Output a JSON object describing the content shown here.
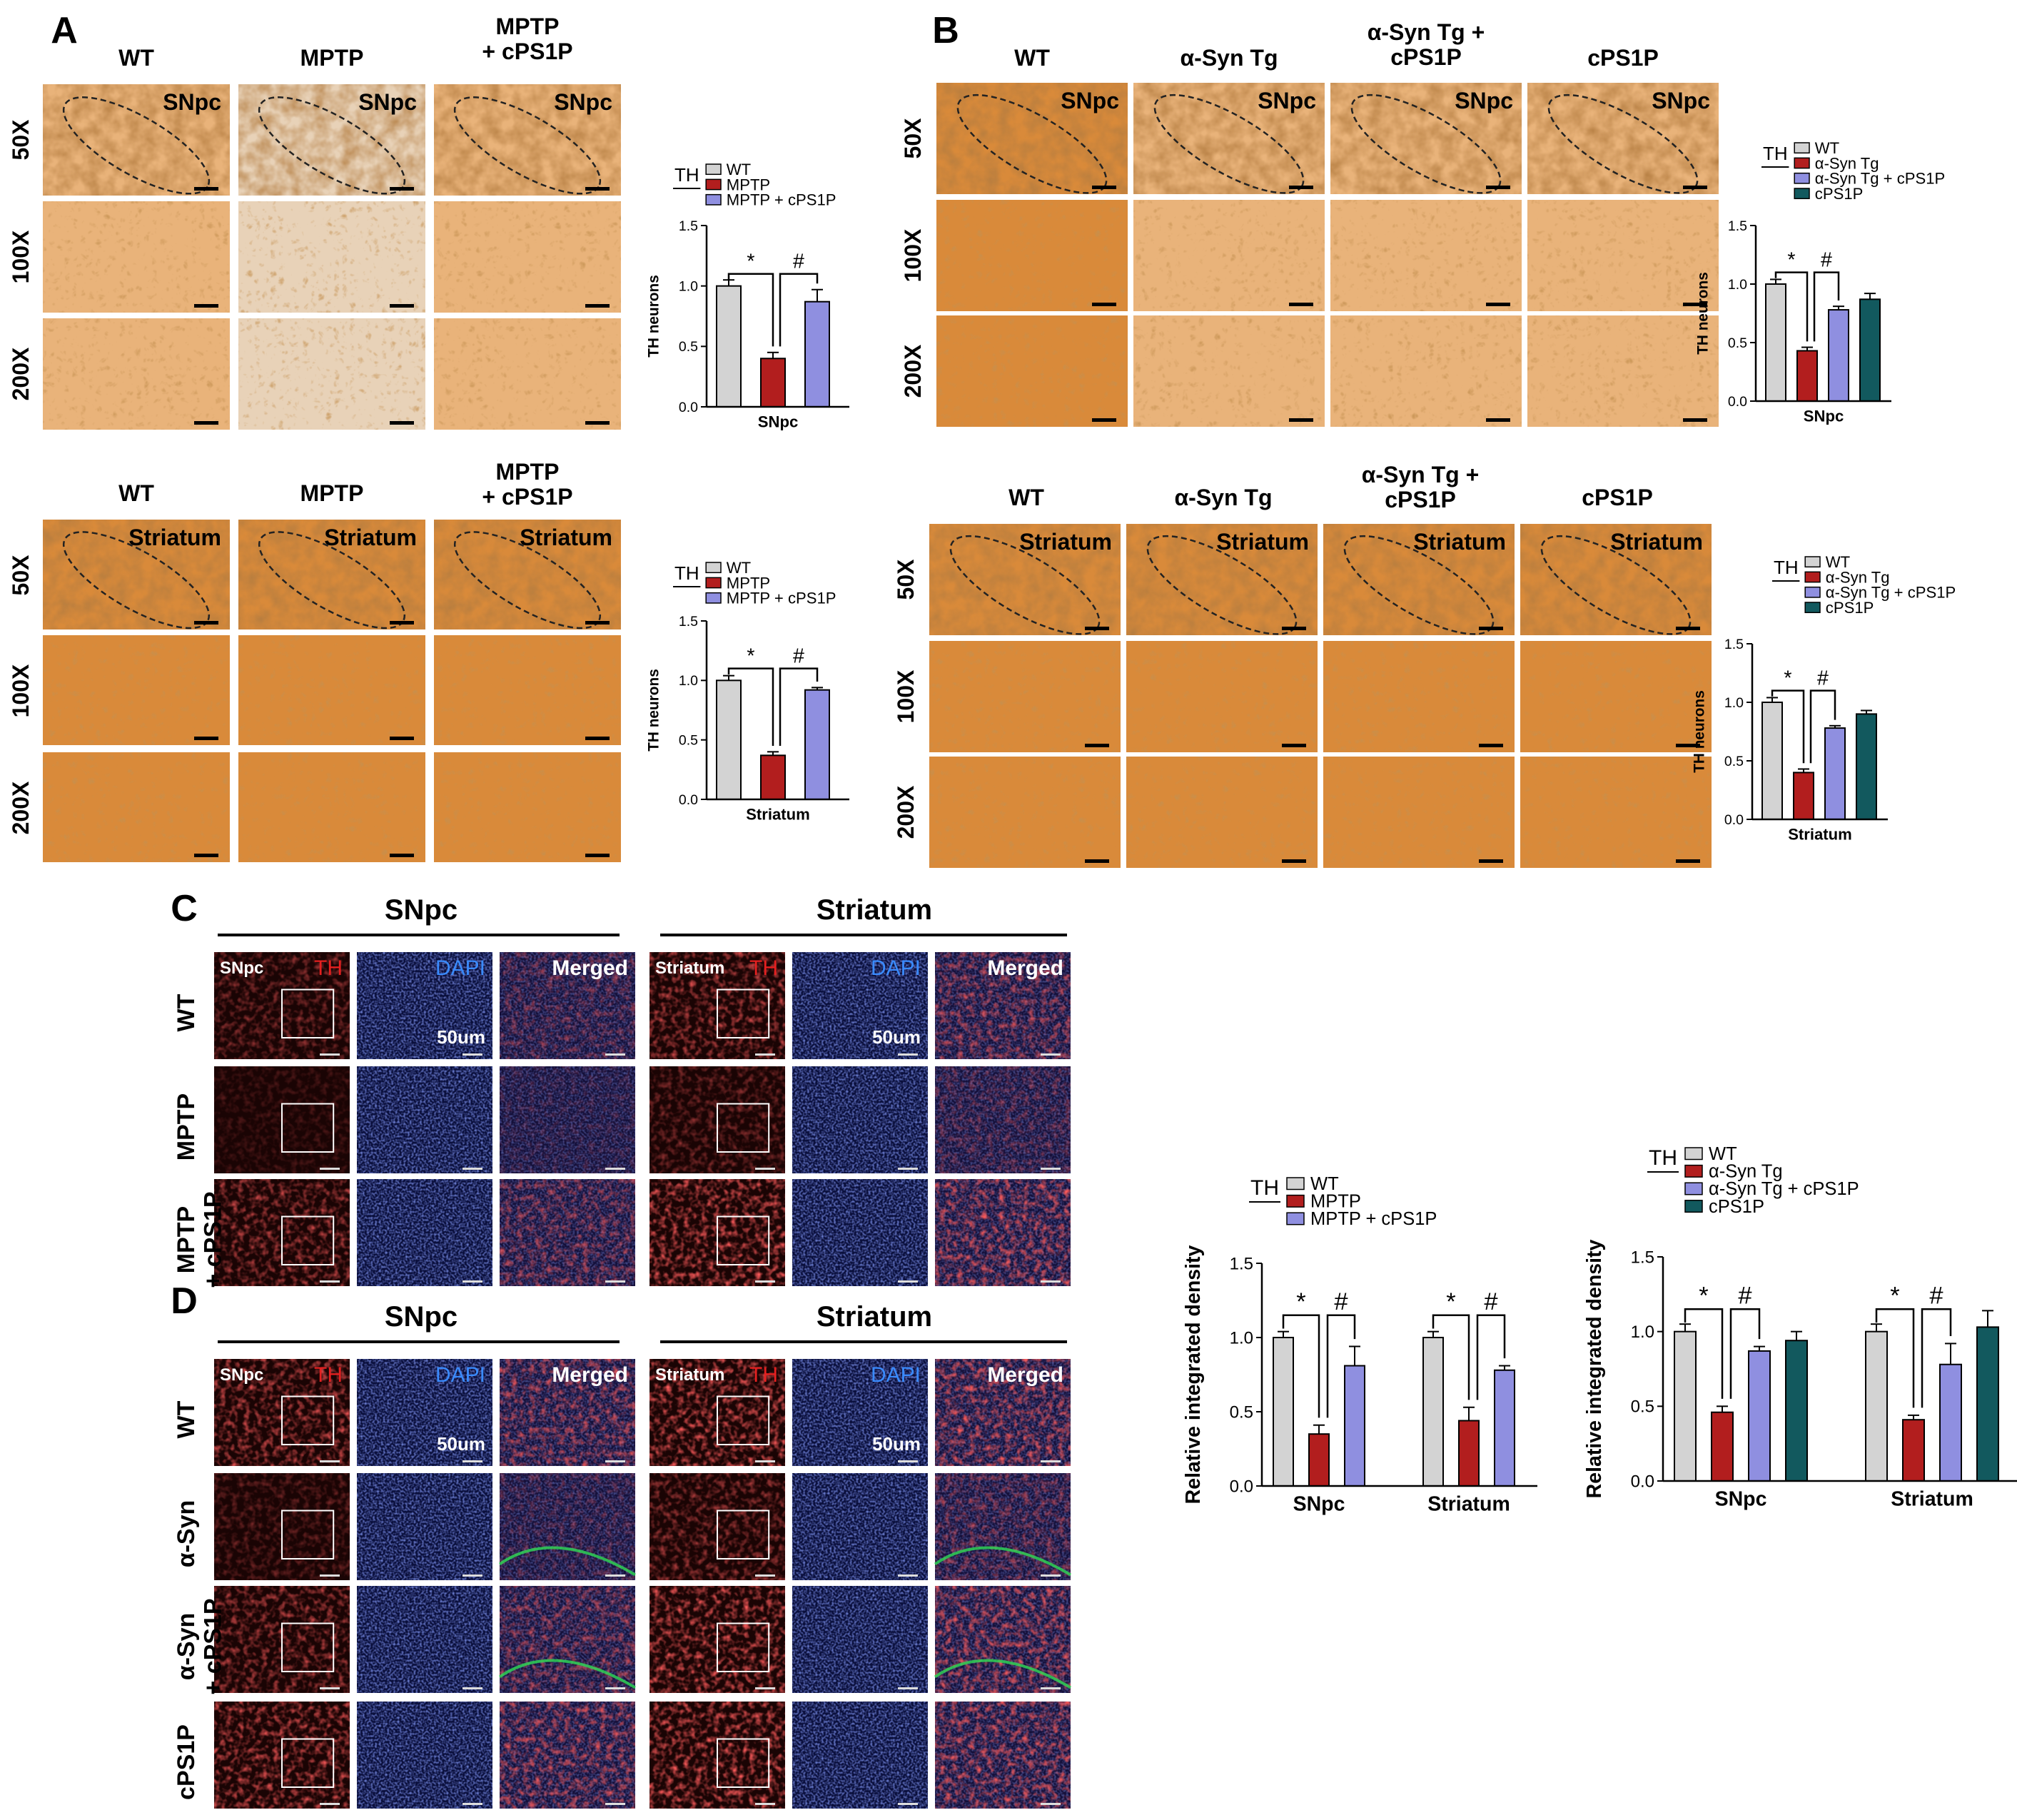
{
  "colors": {
    "wt": "#d3d3d3",
    "insult": "#b21e1e",
    "treated": "#8f8fe0",
    "cps1p": "#12595e",
    "ihc_light": "#f0c088",
    "ihc_dark": "#9a4a1a",
    "fluor_th": "#d21e1e",
    "fluor_dapi": "#1c2fa0"
  },
  "panels": {
    "A": {
      "letter": "A",
      "cols": [
        "WT",
        "MPTP",
        "MPTP\n+ cPS1P"
      ],
      "rows": [
        "50X",
        "100X",
        "200X"
      ],
      "region_top": "SNpc",
      "region_bottom": "Striatum"
    },
    "B": {
      "letter": "B",
      "cols": [
        "WT",
        "α-Syn Tg",
        "α-Syn Tg +\ncPS1P",
        "cPS1P"
      ],
      "rows": [
        "50X",
        "100X",
        "200X"
      ],
      "region_top": "SNpc",
      "region_bottom": "Striatum"
    },
    "C": {
      "letter": "C",
      "region_snpc": "SNpc",
      "region_str": "Striatum",
      "channel_th": "TH",
      "channel_dapi": "DAPI",
      "channel_merged": "Merged",
      "scale": "50um",
      "rows": [
        "WT",
        "MPTP",
        "MPTP\n+ cPS1P"
      ]
    },
    "D": {
      "letter": "D",
      "region_snpc": "SNpc",
      "region_str": "Striatum",
      "channel_th": "TH",
      "channel_dapi": "DAPI",
      "channel_merged": "Merged",
      "scale": "50um",
      "rows": [
        "WT",
        "α-Syn",
        "α-Syn\n+ cPS1P",
        "cPS1P"
      ]
    }
  },
  "chart_data": [
    {
      "type": "bar",
      "panel": "A",
      "legend_title": "TH",
      "series": [
        {
          "name": "WT",
          "value": 1.0,
          "err": 0.05
        },
        {
          "name": "MPTP",
          "value": 0.4,
          "err": 0.05
        },
        {
          "name": "MPTP + cPS1P",
          "value": 0.87,
          "err": 0.1
        }
      ],
      "ylabel": "TH neurons",
      "xlabel": "SNpc",
      "ylim": [
        0,
        1.5
      ],
      "yticks": [
        "0.0",
        "0.5",
        "1.0",
        "1.5"
      ],
      "sig": [
        "*",
        "#"
      ]
    },
    {
      "type": "bar",
      "panel": "A",
      "legend_title": "TH",
      "series": [
        {
          "name": "WT",
          "value": 1.0,
          "err": 0.04
        },
        {
          "name": "MPTP",
          "value": 0.37,
          "err": 0.03
        },
        {
          "name": "MPTP + cPS1P",
          "value": 0.92,
          "err": 0.02
        }
      ],
      "ylabel": "TH neurons",
      "xlabel": "Striatum",
      "ylim": [
        0,
        1.5
      ],
      "yticks": [
        "0.0",
        "0.5",
        "1.0",
        "1.5"
      ],
      "sig": [
        "*",
        "#"
      ]
    },
    {
      "type": "bar",
      "panel": "B",
      "legend_title": "TH",
      "series": [
        {
          "name": "WT",
          "value": 1.0,
          "err": 0.04
        },
        {
          "name": "α-Syn Tg",
          "value": 0.43,
          "err": 0.03
        },
        {
          "name": "α-Syn Tg + cPS1P",
          "value": 0.78,
          "err": 0.03
        },
        {
          "name": "cPS1P",
          "value": 0.87,
          "err": 0.05
        }
      ],
      "ylabel": "TH neurons",
      "xlabel": "SNpc",
      "ylim": [
        0,
        1.5
      ],
      "yticks": [
        "0.0",
        "0.5",
        "1.0",
        "1.5"
      ],
      "sig": [
        "*",
        "#"
      ]
    },
    {
      "type": "bar",
      "panel": "B",
      "legend_title": "TH",
      "series": [
        {
          "name": "WT",
          "value": 1.0,
          "err": 0.04
        },
        {
          "name": "α-Syn Tg",
          "value": 0.4,
          "err": 0.03
        },
        {
          "name": "α-Syn Tg + cPS1P",
          "value": 0.78,
          "err": 0.02
        },
        {
          "name": "cPS1P",
          "value": 0.9,
          "err": 0.03
        }
      ],
      "ylabel": "TH neurons",
      "xlabel": "Striatum",
      "ylim": [
        0,
        1.5
      ],
      "yticks": [
        "0.0",
        "0.5",
        "1.0",
        "1.5"
      ],
      "sig": [
        "*",
        "#"
      ]
    },
    {
      "type": "bar",
      "panel": "C",
      "legend_title": "TH",
      "categories": [
        "SNpc",
        "Striatum"
      ],
      "series": [
        {
          "name": "WT",
          "values": [
            1.0,
            1.0
          ],
          "err": [
            0.04,
            0.04
          ]
        },
        {
          "name": "MPTP",
          "values": [
            0.35,
            0.44
          ],
          "err": [
            0.06,
            0.09
          ]
        },
        {
          "name": "MPTP + cPS1P",
          "values": [
            0.81,
            0.78
          ],
          "err": [
            0.13,
            0.03
          ]
        }
      ],
      "ylabel": "Relative integrated density",
      "ylim": [
        0,
        1.5
      ],
      "yticks": [
        "0.0",
        "0.5",
        "1.0",
        "1.5"
      ],
      "sig": [
        "*",
        "#"
      ]
    },
    {
      "type": "bar",
      "panel": "D",
      "legend_title": "TH",
      "categories": [
        "SNpc",
        "Striatum"
      ],
      "series": [
        {
          "name": "WT",
          "values": [
            1.0,
            1.0
          ],
          "err": [
            0.05,
            0.05
          ]
        },
        {
          "name": "α-Syn Tg",
          "values": [
            0.46,
            0.41
          ],
          "err": [
            0.04,
            0.03
          ]
        },
        {
          "name": "α-Syn Tg + cPS1P",
          "values": [
            0.87,
            0.78
          ],
          "err": [
            0.03,
            0.14
          ]
        },
        {
          "name": "cPS1P",
          "values": [
            0.94,
            1.03
          ],
          "err": [
            0.06,
            0.11
          ]
        }
      ],
      "ylabel": "Relative integrated density",
      "ylim": [
        0,
        1.5
      ],
      "yticks": [
        "0.0",
        "0.5",
        "1.0",
        "1.5"
      ],
      "sig": [
        "*",
        "#"
      ]
    }
  ]
}
